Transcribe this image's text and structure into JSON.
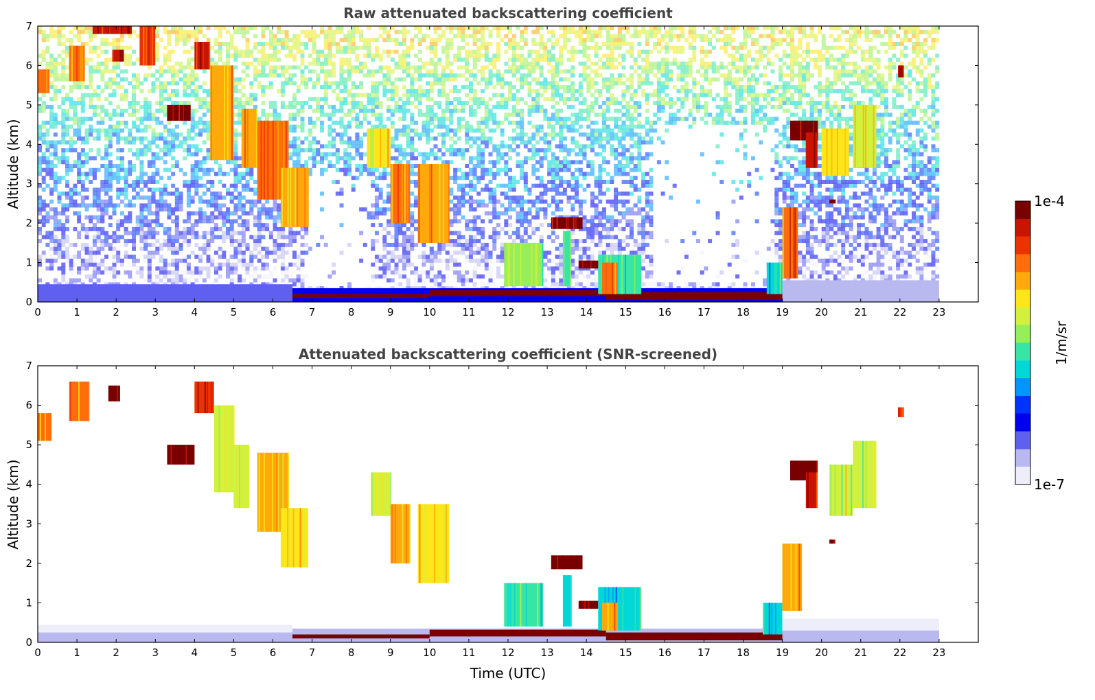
{
  "chart_data": [
    {
      "type": "heatmap",
      "title": "Raw attenuated backscattering coefficient",
      "xlabel": "",
      "ylabel": "Altitude (km)",
      "xlim": [
        0,
        24
      ],
      "ylim": [
        0,
        7
      ],
      "xticks": [
        "0",
        "1",
        "2",
        "3",
        "4",
        "5",
        "6",
        "7",
        "8",
        "9",
        "10",
        "11",
        "12",
        "13",
        "14",
        "15",
        "16",
        "17",
        "18",
        "19",
        "20",
        "21",
        "22",
        "23"
      ],
      "yticks": [
        "0",
        "1",
        "2",
        "3",
        "4",
        "5",
        "6",
        "7"
      ],
      "data_end_hour": 23,
      "noise": true,
      "features": [
        {
          "t0": 0.0,
          "t1": 0.3,
          "z0": 5.3,
          "z1": 5.9,
          "level": 0.8
        },
        {
          "t0": 0.8,
          "t1": 1.2,
          "z0": 5.6,
          "z1": 6.5,
          "level": 0.8
        },
        {
          "t0": 1.4,
          "t1": 2.4,
          "z0": 6.8,
          "z1": 7.0,
          "level": 0.92
        },
        {
          "t0": 1.9,
          "t1": 2.2,
          "z0": 6.1,
          "z1": 6.4,
          "level": 0.9
        },
        {
          "t0": 2.6,
          "t1": 3.0,
          "z0": 6.0,
          "z1": 7.0,
          "level": 0.85
        },
        {
          "t0": 3.3,
          "t1": 3.9,
          "z0": 4.6,
          "z1": 5.0,
          "level": 0.98
        },
        {
          "t0": 4.0,
          "t1": 4.4,
          "z0": 5.9,
          "z1": 6.6,
          "level": 0.9
        },
        {
          "t0": 4.4,
          "t1": 5.0,
          "z0": 3.6,
          "z1": 6.0,
          "level": 0.7
        },
        {
          "t0": 5.2,
          "t1": 5.6,
          "z0": 3.4,
          "z1": 4.9,
          "level": 0.72
        },
        {
          "t0": 5.6,
          "t1": 6.4,
          "z0": 2.6,
          "z1": 4.6,
          "level": 0.78
        },
        {
          "t0": 6.2,
          "t1": 6.9,
          "z0": 1.9,
          "z1": 3.4,
          "level": 0.7
        },
        {
          "t0": 8.4,
          "t1": 9.0,
          "z0": 3.4,
          "z1": 4.4,
          "level": 0.65
        },
        {
          "t0": 9.0,
          "t1": 9.5,
          "z0": 2.0,
          "z1": 3.5,
          "level": 0.75
        },
        {
          "t0": 9.7,
          "t1": 10.5,
          "z0": 1.5,
          "z1": 3.5,
          "level": 0.72
        },
        {
          "t0": 11.9,
          "t1": 12.9,
          "z0": 0.4,
          "z1": 1.5,
          "level": 0.5
        },
        {
          "t0": 13.1,
          "t1": 13.9,
          "z0": 1.85,
          "z1": 2.15,
          "level": 0.95
        },
        {
          "t0": 13.4,
          "t1": 13.6,
          "z0": 0.4,
          "z1": 1.8,
          "level": 0.45
        },
        {
          "t0": 13.8,
          "t1": 14.3,
          "z0": 0.85,
          "z1": 1.05,
          "level": 0.98
        },
        {
          "t0": 14.3,
          "t1": 15.4,
          "z0": 0.2,
          "z1": 1.2,
          "level": 0.45
        },
        {
          "t0": 14.4,
          "t1": 14.8,
          "z0": 0.2,
          "z1": 1.0,
          "level": 0.75
        },
        {
          "t0": 18.6,
          "t1": 19.0,
          "z0": 0.2,
          "z1": 1.0,
          "level": 0.4
        },
        {
          "t0": 19.0,
          "t1": 19.4,
          "z0": 0.6,
          "z1": 2.4,
          "level": 0.78
        },
        {
          "t0": 19.2,
          "t1": 19.9,
          "z0": 4.1,
          "z1": 4.6,
          "level": 0.95
        },
        {
          "t0": 19.6,
          "t1": 19.9,
          "z0": 3.4,
          "z1": 4.3,
          "level": 0.92
        },
        {
          "t0": 20.0,
          "t1": 20.7,
          "z0": 3.2,
          "z1": 4.4,
          "level": 0.65
        },
        {
          "t0": 20.8,
          "t1": 21.4,
          "z0": 3.4,
          "z1": 5.0,
          "level": 0.62
        },
        {
          "t0": 20.2,
          "t1": 20.35,
          "z0": 2.5,
          "z1": 2.6,
          "level": 0.95
        },
        {
          "t0": 21.95,
          "t1": 22.1,
          "z0": 5.7,
          "z1": 6.0,
          "level": 0.9
        }
      ],
      "boundary_layer": [
        {
          "t0": 0.0,
          "t1": 6.5,
          "z0": 0.0,
          "z1": 0.45,
          "level": 0.15
        },
        {
          "t0": 6.5,
          "t1": 19.0,
          "z0": 0.0,
          "z1": 0.35,
          "level": 0.2
        },
        {
          "t0": 19.0,
          "t1": 23.0,
          "z0": 0.0,
          "z1": 0.55,
          "level": 0.12
        },
        {
          "t0": 6.5,
          "t1": 10.0,
          "z0": 0.1,
          "z1": 0.2,
          "level": 0.97
        },
        {
          "t0": 10.0,
          "t1": 14.5,
          "z0": 0.15,
          "z1": 0.3,
          "level": 0.97
        },
        {
          "t0": 14.5,
          "t1": 19.0,
          "z0": 0.05,
          "z1": 0.25,
          "level": 0.97
        }
      ]
    },
    {
      "type": "heatmap",
      "title": "Attenuated backscattering coefficient (SNR-screened)",
      "xlabel": "Time (UTC)",
      "ylabel": "Altitude (km)",
      "xlim": [
        0,
        24
      ],
      "ylim": [
        0,
        7
      ],
      "xticks": [
        "0",
        "1",
        "2",
        "3",
        "4",
        "5",
        "6",
        "7",
        "8",
        "9",
        "10",
        "11",
        "12",
        "13",
        "14",
        "15",
        "16",
        "17",
        "18",
        "19",
        "20",
        "21",
        "22",
        "23"
      ],
      "yticks": [
        "0",
        "1",
        "2",
        "3",
        "4",
        "5",
        "6",
        "7"
      ],
      "data_end_hour": 23,
      "noise": false,
      "features": [
        {
          "t0": 0.0,
          "t1": 0.35,
          "z0": 5.1,
          "z1": 5.8,
          "level": 0.75
        },
        {
          "t0": 0.8,
          "t1": 1.3,
          "z0": 5.6,
          "z1": 6.6,
          "level": 0.75
        },
        {
          "t0": 1.8,
          "t1": 2.1,
          "z0": 6.1,
          "z1": 6.5,
          "level": 1.0
        },
        {
          "t0": 3.3,
          "t1": 4.0,
          "z0": 4.5,
          "z1": 5.0,
          "level": 1.0
        },
        {
          "t0": 4.0,
          "t1": 4.5,
          "z0": 5.8,
          "z1": 6.6,
          "level": 0.85
        },
        {
          "t0": 4.5,
          "t1": 5.0,
          "z0": 3.8,
          "z1": 6.0,
          "level": 0.62
        },
        {
          "t0": 5.0,
          "t1": 5.4,
          "z0": 3.4,
          "z1": 5.0,
          "level": 0.62
        },
        {
          "t0": 5.6,
          "t1": 6.4,
          "z0": 2.8,
          "z1": 4.8,
          "level": 0.72
        },
        {
          "t0": 6.2,
          "t1": 6.9,
          "z0": 1.9,
          "z1": 3.4,
          "level": 0.66
        },
        {
          "t0": 8.5,
          "t1": 9.0,
          "z0": 3.2,
          "z1": 4.3,
          "level": 0.62
        },
        {
          "t0": 9.0,
          "t1": 9.5,
          "z0": 2.0,
          "z1": 3.5,
          "level": 0.7
        },
        {
          "t0": 9.7,
          "t1": 10.5,
          "z0": 1.5,
          "z1": 3.5,
          "level": 0.68
        },
        {
          "t0": 11.9,
          "t1": 12.9,
          "z0": 0.4,
          "z1": 1.5,
          "level": 0.45
        },
        {
          "t0": 13.1,
          "t1": 13.9,
          "z0": 1.85,
          "z1": 2.2,
          "level": 1.0
        },
        {
          "t0": 13.4,
          "t1": 13.6,
          "z0": 0.4,
          "z1": 1.7,
          "level": 0.4
        },
        {
          "t0": 13.8,
          "t1": 14.3,
          "z0": 0.85,
          "z1": 1.05,
          "level": 1.0
        },
        {
          "t0": 14.3,
          "t1": 15.4,
          "z0": 0.3,
          "z1": 1.4,
          "level": 0.42
        },
        {
          "t0": 14.4,
          "t1": 14.8,
          "z0": 0.3,
          "z1": 1.0,
          "level": 0.72
        },
        {
          "t0": 18.5,
          "t1": 19.0,
          "z0": 0.2,
          "z1": 1.0,
          "level": 0.38
        },
        {
          "t0": 19.0,
          "t1": 19.5,
          "z0": 0.8,
          "z1": 2.5,
          "level": 0.72
        },
        {
          "t0": 19.2,
          "t1": 19.9,
          "z0": 4.1,
          "z1": 4.6,
          "level": 1.0
        },
        {
          "t0": 19.6,
          "t1": 19.9,
          "z0": 3.4,
          "z1": 4.3,
          "level": 0.9
        },
        {
          "t0": 20.2,
          "t1": 20.8,
          "z0": 3.2,
          "z1": 4.5,
          "level": 0.6
        },
        {
          "t0": 20.8,
          "t1": 21.4,
          "z0": 3.4,
          "z1": 5.1,
          "level": 0.58
        },
        {
          "t0": 20.2,
          "t1": 20.35,
          "z0": 2.5,
          "z1": 2.6,
          "level": 1.0
        },
        {
          "t0": 21.95,
          "t1": 22.1,
          "z0": 5.7,
          "z1": 5.95,
          "level": 0.85
        }
      ],
      "boundary_layer": [
        {
          "t0": 0.0,
          "t1": 6.5,
          "z0": 0.0,
          "z1": 0.45,
          "level": 0.04
        },
        {
          "t0": 0.0,
          "t1": 6.5,
          "z0": 0.0,
          "z1": 0.25,
          "level": 0.12
        },
        {
          "t0": 6.5,
          "t1": 19.0,
          "z0": 0.0,
          "z1": 0.35,
          "level": 0.12
        },
        {
          "t0": 19.0,
          "t1": 23.0,
          "z0": 0.0,
          "z1": 0.6,
          "level": 0.05
        },
        {
          "t0": 19.0,
          "t1": 23.0,
          "z0": 0.0,
          "z1": 0.3,
          "level": 0.1
        },
        {
          "t0": 6.5,
          "t1": 10.0,
          "z0": 0.1,
          "z1": 0.2,
          "level": 1.0
        },
        {
          "t0": 10.0,
          "t1": 14.5,
          "z0": 0.15,
          "z1": 0.32,
          "level": 1.0
        },
        {
          "t0": 14.5,
          "t1": 19.0,
          "z0": 0.05,
          "z1": 0.25,
          "level": 1.0
        }
      ]
    }
  ],
  "colorbar": {
    "label": "1/m/sr",
    "max_label": "1e-4",
    "min_label": "1e-7",
    "scale": "log",
    "range": [
      1e-07,
      0.0001
    ],
    "colormap": [
      "#eeeefa",
      "#b9b9f0",
      "#5f5ff0",
      "#0000f0",
      "#0032ff",
      "#0096ff",
      "#00d7d7",
      "#37e6a5",
      "#96ee5a",
      "#d2f03c",
      "#ffe619",
      "#ffaa0a",
      "#ff6e0a",
      "#eb3200",
      "#c81400",
      "#780000"
    ]
  }
}
